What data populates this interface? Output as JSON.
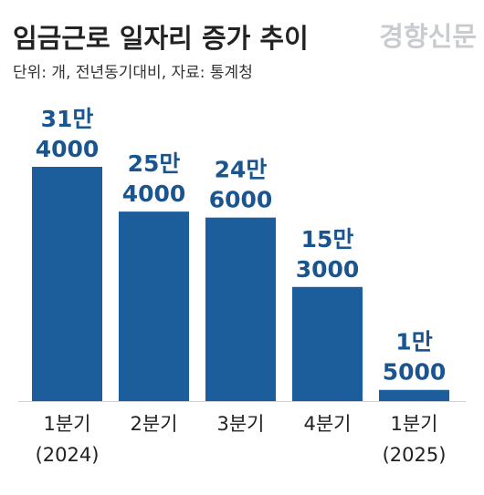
{
  "chart_data": {
    "type": "bar",
    "title": "임금근로 일자리 증가 추이",
    "watermark": "경향신문",
    "subtitle": "단위: 개, 전년동기대비, 자료: 통계청",
    "categories": [
      [
        "1분기",
        "(2024)"
      ],
      [
        "2분기"
      ],
      [
        "3분기"
      ],
      [
        "4분기"
      ],
      [
        "1분기",
        "(2025)"
      ]
    ],
    "values": [
      314000,
      254000,
      246000,
      153000,
      15000
    ],
    "value_labels": [
      [
        "31만",
        "4000"
      ],
      [
        "25만",
        "4000"
      ],
      [
        "24만",
        "6000"
      ],
      [
        "15만",
        "3000"
      ],
      [
        "1만",
        "5000"
      ]
    ],
    "color": "#1b5e9b"
  }
}
